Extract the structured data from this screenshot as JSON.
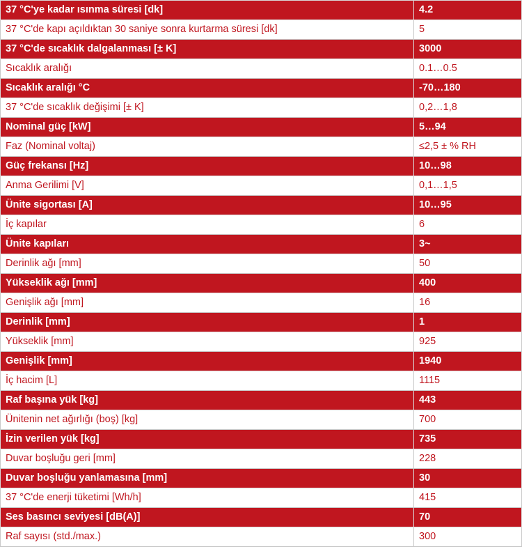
{
  "rows": [
    {
      "label": "37 °C'ye kadar ısınma süresi [dk]",
      "value": "4.2"
    },
    {
      "label": "37 °C'de kapı açıldıktan 30 saniye sonra kurtarma süresi [dk]",
      "value": "5"
    },
    {
      "label": "37 °C'de sıcaklık dalgalanması [± K]",
      "value": "3000"
    },
    {
      "label": "Sıcaklık aralığı",
      "value": "0.1…0.5"
    },
    {
      "label": "Sıcaklık aralığı °C",
      "value": "-70…180"
    },
    {
      "label": "37 °C'de sıcaklık değişimi [± K]",
      "value": "0,2…1,8"
    },
    {
      "label": "Nominal güç [kW]",
      "value": "5…94"
    },
    {
      "label": "Faz (Nominal voltaj)",
      "value": "≤2,5 ± % RH"
    },
    {
      "label": "Güç frekansı [Hz]",
      "value": "10…98"
    },
    {
      "label": "Anma Gerilimi [V]",
      "value": "0,1…1,5"
    },
    {
      "label": "Ünite sigortası [A]",
      "value": "10…95"
    },
    {
      "label": "İç kapılar",
      "value": "6"
    },
    {
      "label": "Ünite kapıları",
      "value": "3~"
    },
    {
      "label": "Derinlik ağı [mm]",
      "value": "50"
    },
    {
      "label": "Yükseklik ağı [mm]",
      "value": "400"
    },
    {
      "label": "Genişlik ağı [mm]",
      "value": "16"
    },
    {
      "label": "Derinlik [mm]",
      "value": "1"
    },
    {
      "label": "Yükseklik [mm]",
      "value": "925"
    },
    {
      "label": "Genişlik [mm]",
      "value": "1940"
    },
    {
      "label": "İç hacim [L]",
      "value": "1115"
    },
    {
      "label": "Raf başına yük [kg]",
      "value": "443"
    },
    {
      "label": "Ünitenin net ağırlığı (boş) [kg]",
      "value": "700"
    },
    {
      "label": "İzin verilen yük [kg]",
      "value": "735"
    },
    {
      "label": "Duvar boşluğu geri [mm]",
      "value": "228"
    },
    {
      "label": "Duvar boşluğu yanlamasına [mm]",
      "value": "30"
    },
    {
      "label": "37 °C'de enerji tüketimi [Wh/h]",
      "value": "415"
    },
    {
      "label": "Ses basıncı seviyesi [dB(A)]",
      "value": "70"
    },
    {
      "label": "Raf sayısı (std./max.)",
      "value": "300"
    }
  ],
  "colors": {
    "dark_row_bg": "#c0161f",
    "dark_row_text": "#ffffff",
    "light_row_bg": "#ffffff",
    "light_row_text": "#c0161f"
  }
}
